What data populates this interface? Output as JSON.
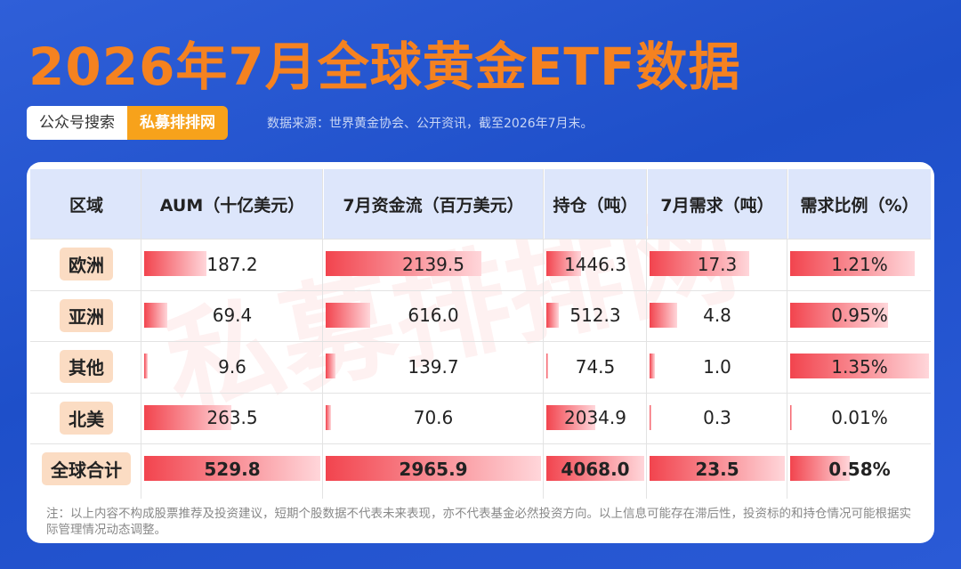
{
  "title": "2026年7月全球黄金ETF数据",
  "search": {
    "label": "公众号搜索",
    "brand": "私募排排网"
  },
  "source": "数据来源：世界黄金协会、公开资讯，截至2026年7月末。",
  "watermark": "私募排排网",
  "table": {
    "header": [
      "区域",
      "AUM（十亿美元）",
      "7月资金流（百万美元）",
      "持仓（吨）",
      "7月需求（吨）",
      "需求比例（%）"
    ],
    "rows": [
      [
        "欧洲",
        "187.2",
        "2139.5",
        "1446.3",
        "17.3",
        "1.21%"
      ],
      [
        "亚洲",
        "69.4",
        "616.0",
        "512.3",
        "4.8",
        "0.95%"
      ],
      [
        "其他",
        "9.6",
        "139.7",
        "74.5",
        "1.0",
        "1.35%"
      ],
      [
        "北美",
        "263.5",
        "70.6",
        "2034.9",
        "0.3",
        "0.01%"
      ],
      [
        "全球合计",
        "529.8",
        "2965.9",
        "4068.0",
        "23.5",
        "0.58%"
      ]
    ]
  },
  "note": "注：以上内容不构成股票推荐及投资建议，短期个股数据不代表未来表现，亦不代表基金必然投资方向。以上信息可能存在滞后性，投资标的和持仓情况可能根据实际管理情况动态调整。"
}
